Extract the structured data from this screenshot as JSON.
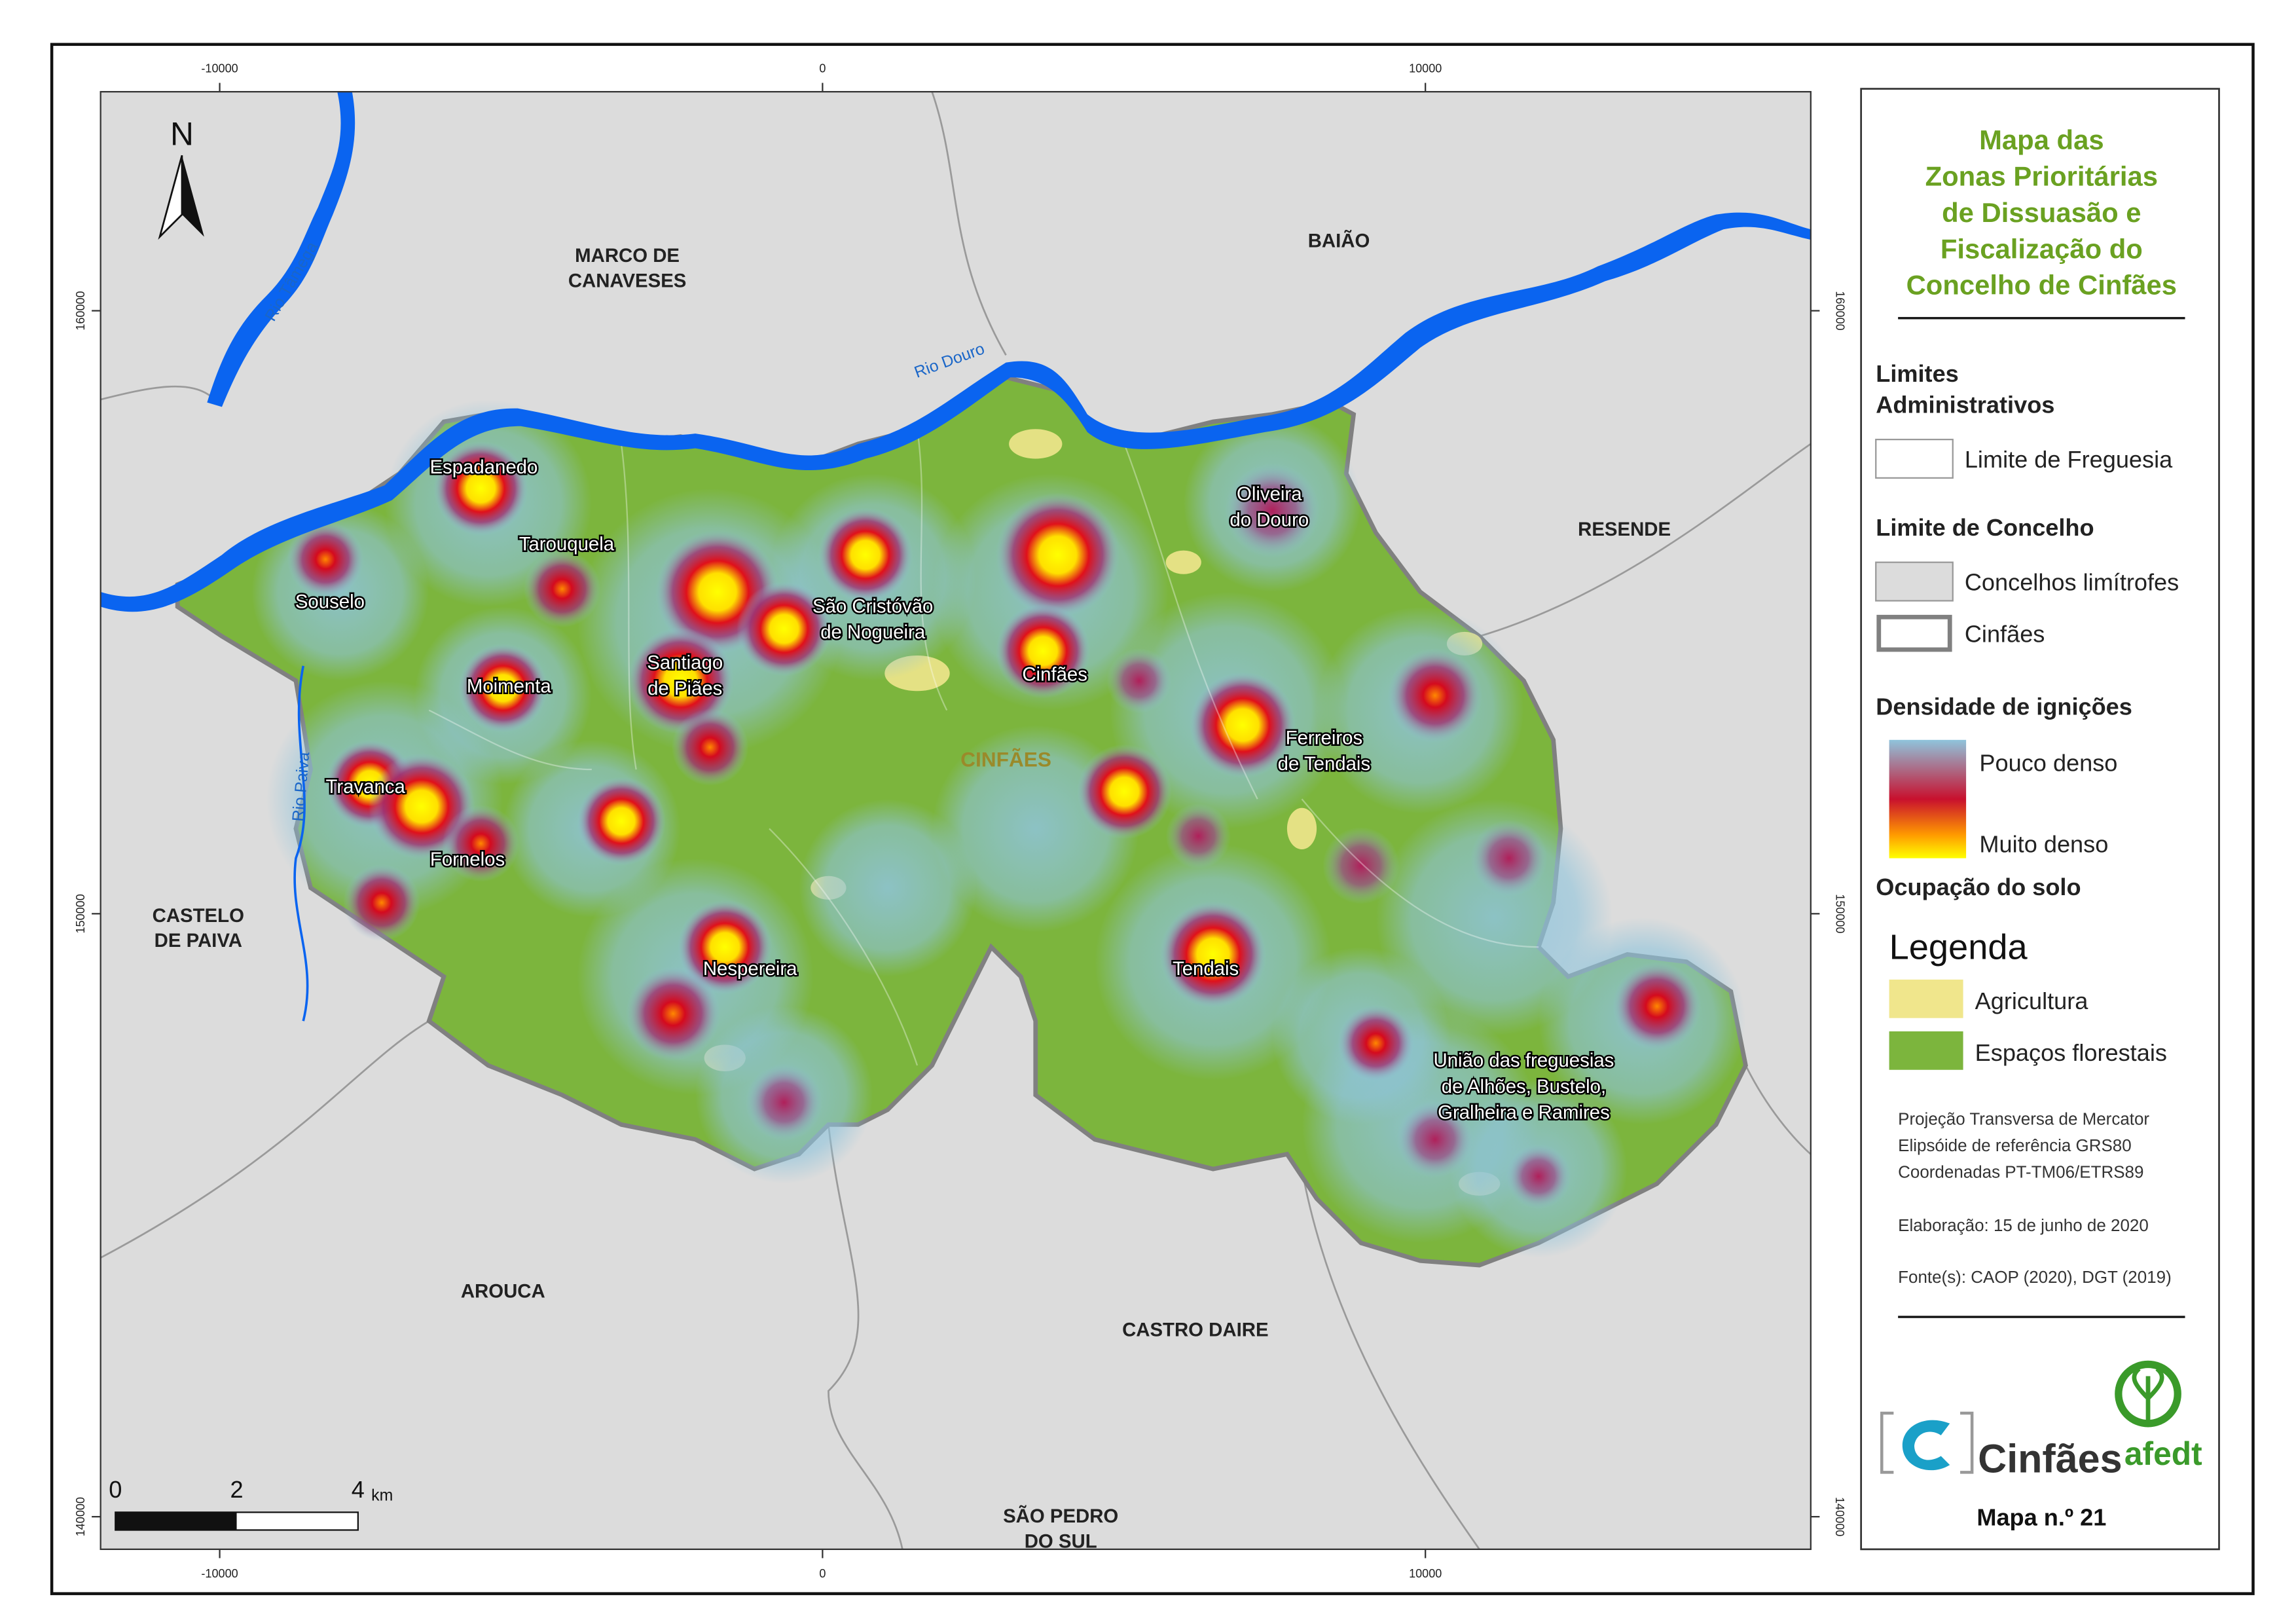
{
  "title": [
    "Mapa das",
    "Zonas Prioritárias",
    "de Dissuasão e",
    "Fiscalização do",
    "Concelho de Cinfães"
  ],
  "map_number": "Mapa n.º 21",
  "north": "N",
  "xticks": [
    -10000,
    0,
    10000
  ],
  "yticks": [
    160000,
    150000,
    140000
  ],
  "scale_bar": {
    "labels": [
      0,
      2,
      4
    ],
    "unit": "km"
  },
  "parishes": [
    {
      "lines": [
        "Espadanedo"
      ]
    },
    {
      "lines": [
        "Tarouquela"
      ]
    },
    {
      "lines": [
        "Souselo"
      ]
    },
    {
      "lines": [
        "São Cristóvão",
        "de Nogueira"
      ]
    },
    {
      "lines": [
        "Santiago",
        "de Piães"
      ]
    },
    {
      "lines": [
        "Moimenta"
      ]
    },
    {
      "lines": [
        "Cinfães"
      ]
    },
    {
      "lines": [
        "Oliveira",
        "do Douro"
      ]
    },
    {
      "lines": [
        "Ferreiros",
        "de Tendais"
      ]
    },
    {
      "lines": [
        "Travanca"
      ]
    },
    {
      "lines": [
        "Fornelos"
      ]
    },
    {
      "lines": [
        "Nespereira"
      ]
    },
    {
      "lines": [
        "Tendais"
      ]
    },
    {
      "lines": [
        "União das freguesias",
        "de Alhões, Bustelo,",
        "Gralheira e Ramires"
      ]
    }
  ],
  "municipality_label": "CINFÃES",
  "counties": [
    {
      "lines": [
        "MARCO DE",
        "CANAVESES"
      ]
    },
    {
      "lines": [
        "BAIÃO"
      ]
    },
    {
      "lines": [
        "RESENDE"
      ]
    },
    {
      "lines": [
        "CASTELO",
        "DE PAIVA"
      ]
    },
    {
      "lines": [
        "AROUCA"
      ]
    },
    {
      "lines": [
        "CASTRO DAIRE"
      ]
    },
    {
      "lines": [
        "SÃO PEDRO",
        "DO SUL"
      ]
    }
  ],
  "rivers": [
    "Rio Tâmega",
    "Rio Douro",
    "Rio Paiva"
  ],
  "legend": {
    "admin_title": [
      "Limites",
      "Administrativos"
    ],
    "freguesia": "Limite de Freguesia",
    "concelho_title": "Limite de Concelho",
    "neighbours": "Concelhos limítrofes",
    "cinfaes": "Cinfães",
    "density_title": "Densidade de ignições",
    "low": "Pouco denso",
    "high": "Muito denso",
    "land_title": "Ocupação do solo",
    "legend_heading": "Legenda",
    "agriculture": "Agricultura",
    "forest": "Espaços florestais"
  },
  "notes": [
    "Projeção Transversa de Mercator",
    "Elipsóide de referência GRS80",
    "Coordenadas PT-TM06/ETRS89",
    "Elaboração: 15 de junho de 2020",
    "Fonte(s): CAOP (2020), DGT (2019)"
  ],
  "logos": {
    "municipality": "Cinfães",
    "association": "afedt"
  }
}
